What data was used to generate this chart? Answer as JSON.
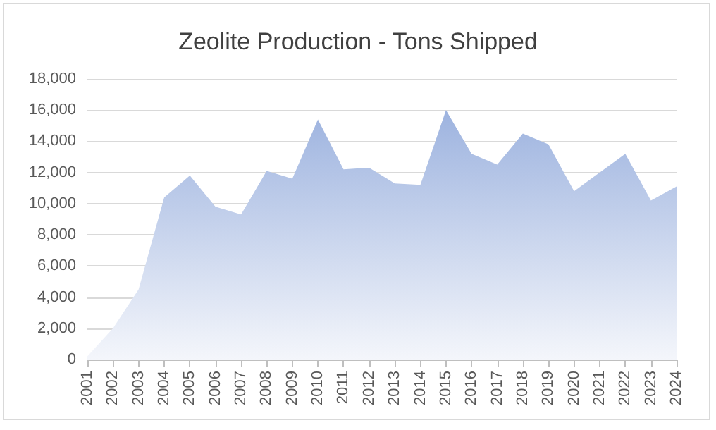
{
  "chart_data": {
    "type": "area",
    "title": "Zeolite Production - Tons Shipped",
    "categories": [
      "2001",
      "2002",
      "2003",
      "2004",
      "2005",
      "2006",
      "2007",
      "2008",
      "2009",
      "2010",
      "2011",
      "2012",
      "2013",
      "2014",
      "2015",
      "2016",
      "2017",
      "2018",
      "2019",
      "2020",
      "2021",
      "2022",
      "2023",
      "2024"
    ],
    "values": [
      200,
      2000,
      4500,
      10400,
      11800,
      9800,
      9300,
      12100,
      11600,
      15400,
      12200,
      12300,
      11300,
      11200,
      16000,
      13200,
      12500,
      14500,
      13800,
      10800,
      12000,
      13200,
      10200,
      11100
    ],
    "color": "#9db3df",
    "ylim": [
      0,
      18000
    ],
    "yticks": [
      0,
      {
        "value": 2000,
        "label": "2,000"
      },
      {
        "value": 4000,
        "label": "4,000"
      },
      {
        "value": 6000,
        "label": "6,000"
      },
      {
        "value": 8000,
        "label": "8,000"
      },
      {
        "value": 10000,
        "label": "10,000"
      },
      {
        "value": 12000,
        "label": "12,000"
      },
      {
        "value": 14000,
        "label": "14,000"
      },
      {
        "value": 16000,
        "label": "16,000"
      },
      {
        "value": 18000,
        "label": "18,000"
      }
    ],
    "grid": "y"
  }
}
